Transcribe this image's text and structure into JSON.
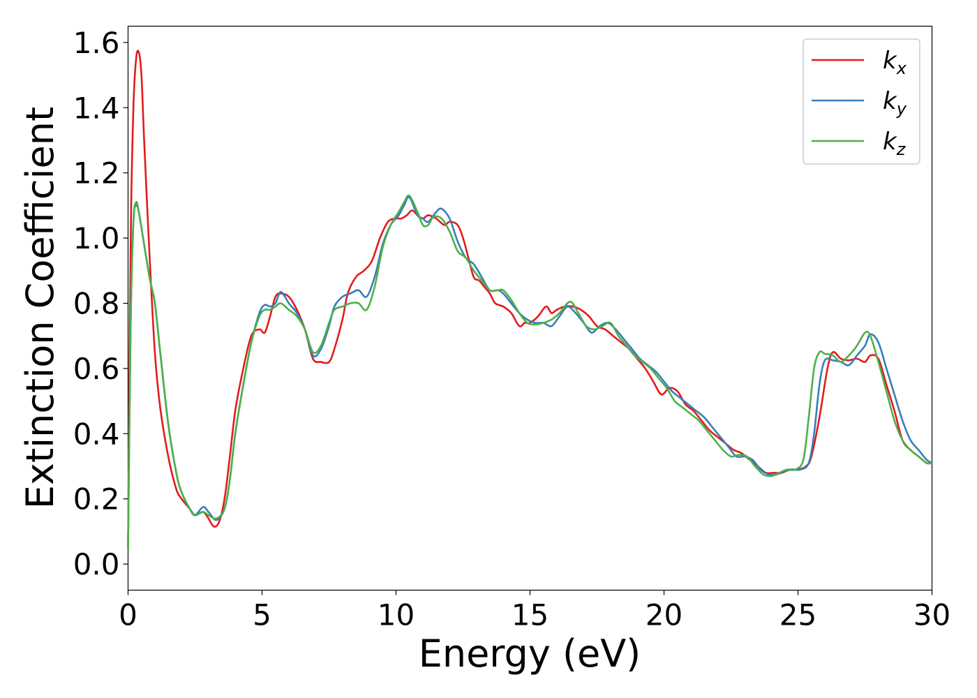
{
  "chart_data": {
    "type": "line",
    "xlabel": "Energy (eV)",
    "ylabel": "Extinction Coefficient",
    "xlim": [
      0,
      30
    ],
    "ylim": [
      -0.08,
      1.65
    ],
    "xticks": [
      0,
      5,
      10,
      15,
      20,
      25,
      30
    ],
    "xtick_labels": [
      "0",
      "5",
      "10",
      "15",
      "20",
      "25",
      "30"
    ],
    "yticks": [
      0.0,
      0.2,
      0.4,
      0.6,
      0.8,
      1.0,
      1.2,
      1.4,
      1.6
    ],
    "ytick_labels": [
      "0.0",
      "0.2",
      "0.4",
      "0.6",
      "0.8",
      "1.0",
      "1.2",
      "1.4",
      "1.6"
    ],
    "grid": false,
    "legend_position": "top-right",
    "series": [
      {
        "name": "k_x",
        "label_base": "k",
        "label_sub": "x",
        "color": "#e41a1c",
        "x": [
          0,
          0.1,
          0.2,
          0.3,
          0.4,
          0.5,
          0.6,
          0.8,
          1.0,
          1.2,
          1.5,
          1.8,
          2.0,
          2.3,
          2.5,
          2.8,
          3.0,
          3.2,
          3.4,
          3.6,
          3.8,
          4.0,
          4.3,
          4.6,
          4.9,
          5.1,
          5.3,
          5.5,
          5.7,
          6.0,
          6.3,
          6.6,
          6.9,
          7.2,
          7.5,
          7.7,
          8.0,
          8.2,
          8.5,
          8.8,
          9.1,
          9.4,
          9.7,
          10.0,
          10.2,
          10.4,
          10.6,
          10.8,
          11.0,
          11.2,
          11.5,
          11.8,
          12.0,
          12.3,
          12.5,
          12.7,
          12.9,
          13.1,
          13.3,
          13.5,
          13.7,
          14.0,
          14.3,
          14.6,
          14.8,
          15.0,
          15.3,
          15.6,
          15.8,
          16.0,
          16.3,
          16.6,
          16.9,
          17.2,
          17.5,
          17.8,
          18.1,
          18.4,
          18.7,
          19.0,
          19.3,
          19.6,
          19.9,
          20.2,
          20.5,
          20.8,
          21.1,
          21.4,
          21.7,
          22.0,
          22.3,
          22.6,
          22.9,
          23.2,
          23.5,
          23.8,
          24.1,
          24.4,
          24.7,
          25.0,
          25.3,
          25.5,
          25.8,
          26.1,
          26.3,
          26.6,
          26.9,
          27.2,
          27.5,
          27.7,
          28.0,
          28.3,
          28.6,
          28.9,
          29.2,
          29.5,
          29.8,
          30.0
        ],
        "values": [
          0.05,
          1.0,
          1.4,
          1.55,
          1.57,
          1.5,
          1.3,
          0.95,
          0.65,
          0.48,
          0.33,
          0.23,
          0.2,
          0.17,
          0.15,
          0.16,
          0.14,
          0.115,
          0.13,
          0.2,
          0.33,
          0.47,
          0.6,
          0.7,
          0.72,
          0.71,
          0.76,
          0.82,
          0.83,
          0.82,
          0.78,
          0.72,
          0.63,
          0.62,
          0.62,
          0.66,
          0.75,
          0.83,
          0.88,
          0.9,
          0.93,
          1.0,
          1.05,
          1.06,
          1.06,
          1.07,
          1.085,
          1.07,
          1.06,
          1.07,
          1.06,
          1.04,
          1.05,
          1.04,
          1.0,
          0.94,
          0.88,
          0.87,
          0.85,
          0.83,
          0.8,
          0.79,
          0.77,
          0.73,
          0.74,
          0.74,
          0.76,
          0.79,
          0.77,
          0.78,
          0.79,
          0.79,
          0.78,
          0.76,
          0.73,
          0.72,
          0.7,
          0.68,
          0.66,
          0.63,
          0.6,
          0.56,
          0.52,
          0.54,
          0.53,
          0.49,
          0.47,
          0.44,
          0.41,
          0.39,
          0.37,
          0.35,
          0.34,
          0.32,
          0.3,
          0.28,
          0.28,
          0.28,
          0.29,
          0.29,
          0.3,
          0.33,
          0.45,
          0.6,
          0.65,
          0.63,
          0.625,
          0.63,
          0.62,
          0.64,
          0.63,
          0.55,
          0.47,
          0.38,
          0.35,
          0.33,
          0.31,
          0.31
        ]
      },
      {
        "name": "k_y",
        "label_base": "k",
        "label_sub": "y",
        "color": "#377eb8",
        "x": [
          0,
          0.1,
          0.2,
          0.3,
          0.4,
          0.6,
          0.8,
          1.0,
          1.2,
          1.5,
          1.8,
          2.0,
          2.3,
          2.5,
          2.8,
          3.0,
          3.3,
          3.6,
          3.8,
          4.0,
          4.3,
          4.6,
          4.9,
          5.1,
          5.3,
          5.5,
          5.7,
          6.0,
          6.3,
          6.6,
          6.9,
          7.2,
          7.5,
          7.7,
          8.0,
          8.3,
          8.6,
          8.9,
          9.2,
          9.5,
          9.8,
          10.1,
          10.3,
          10.5,
          10.8,
          11.0,
          11.2,
          11.5,
          11.7,
          12.0,
          12.3,
          12.6,
          12.9,
          13.2,
          13.5,
          13.8,
          14.0,
          14.3,
          14.6,
          14.9,
          15.2,
          15.5,
          15.8,
          16.1,
          16.4,
          16.7,
          17.0,
          17.3,
          17.6,
          17.9,
          18.2,
          18.5,
          18.8,
          19.1,
          19.4,
          19.7,
          20.0,
          20.3,
          20.6,
          20.9,
          21.2,
          21.5,
          21.8,
          22.1,
          22.4,
          22.7,
          23.0,
          23.3,
          23.6,
          23.9,
          24.2,
          24.5,
          24.8,
          25.1,
          25.4,
          25.6,
          25.8,
          26.0,
          26.3,
          26.6,
          26.9,
          27.2,
          27.5,
          27.7,
          28.0,
          28.3,
          28.6,
          28.9,
          29.2,
          29.5,
          29.8,
          30.0
        ],
        "values": [
          0.05,
          0.75,
          1.05,
          1.1,
          1.08,
          0.98,
          0.88,
          0.8,
          0.65,
          0.43,
          0.28,
          0.22,
          0.17,
          0.15,
          0.175,
          0.16,
          0.135,
          0.17,
          0.26,
          0.4,
          0.55,
          0.68,
          0.77,
          0.795,
          0.79,
          0.8,
          0.835,
          0.8,
          0.77,
          0.72,
          0.64,
          0.66,
          0.73,
          0.79,
          0.82,
          0.83,
          0.84,
          0.82,
          0.88,
          0.98,
          1.04,
          1.07,
          1.1,
          1.125,
          1.07,
          1.06,
          1.05,
          1.08,
          1.09,
          1.06,
          0.99,
          0.94,
          0.92,
          0.88,
          0.84,
          0.84,
          0.83,
          0.8,
          0.77,
          0.75,
          0.74,
          0.74,
          0.73,
          0.76,
          0.79,
          0.77,
          0.74,
          0.71,
          0.73,
          0.74,
          0.72,
          0.69,
          0.66,
          0.63,
          0.61,
          0.59,
          0.56,
          0.53,
          0.51,
          0.49,
          0.47,
          0.45,
          0.42,
          0.39,
          0.36,
          0.33,
          0.33,
          0.32,
          0.29,
          0.275,
          0.275,
          0.285,
          0.29,
          0.29,
          0.31,
          0.4,
          0.55,
          0.625,
          0.625,
          0.62,
          0.61,
          0.64,
          0.67,
          0.705,
          0.68,
          0.6,
          0.52,
          0.44,
          0.38,
          0.35,
          0.32,
          0.31
        ]
      },
      {
        "name": "k_z",
        "label_base": "k",
        "label_sub": "z",
        "color": "#4daf4a",
        "x": [
          0,
          0.1,
          0.2,
          0.3,
          0.4,
          0.6,
          0.8,
          1.0,
          1.2,
          1.5,
          1.8,
          2.0,
          2.3,
          2.5,
          2.8,
          3.0,
          3.3,
          3.6,
          3.8,
          4.0,
          4.3,
          4.6,
          4.9,
          5.1,
          5.3,
          5.5,
          5.7,
          6.0,
          6.3,
          6.6,
          6.9,
          7.2,
          7.5,
          7.7,
          8.0,
          8.3,
          8.6,
          8.9,
          9.2,
          9.5,
          9.8,
          10.1,
          10.3,
          10.5,
          10.8,
          11.0,
          11.2,
          11.4,
          11.7,
          12.0,
          12.3,
          12.6,
          12.9,
          13.2,
          13.5,
          13.8,
          14.0,
          14.3,
          14.6,
          14.9,
          15.2,
          15.5,
          15.8,
          16.1,
          16.5,
          16.8,
          17.1,
          17.4,
          17.7,
          18.0,
          18.3,
          18.6,
          18.9,
          19.2,
          19.5,
          19.8,
          20.1,
          20.4,
          20.7,
          21.0,
          21.3,
          21.6,
          21.9,
          22.2,
          22.5,
          22.8,
          23.1,
          23.4,
          23.7,
          24.0,
          24.3,
          24.6,
          24.9,
          25.2,
          25.4,
          25.6,
          25.8,
          26.0,
          26.3,
          26.6,
          26.9,
          27.2,
          27.5,
          27.7,
          28.0,
          28.3,
          28.6,
          28.9,
          29.2,
          29.5,
          29.8,
          30.0
        ],
        "values": [
          0.05,
          0.75,
          1.05,
          1.11,
          1.08,
          0.98,
          0.88,
          0.8,
          0.65,
          0.43,
          0.28,
          0.22,
          0.17,
          0.15,
          0.16,
          0.15,
          0.14,
          0.17,
          0.26,
          0.4,
          0.55,
          0.68,
          0.76,
          0.78,
          0.78,
          0.79,
          0.8,
          0.78,
          0.76,
          0.72,
          0.65,
          0.67,
          0.74,
          0.78,
          0.79,
          0.8,
          0.8,
          0.78,
          0.85,
          0.97,
          1.04,
          1.08,
          1.11,
          1.13,
          1.08,
          1.04,
          1.04,
          1.065,
          1.06,
          1.02,
          0.96,
          0.94,
          0.9,
          0.87,
          0.84,
          0.84,
          0.84,
          0.81,
          0.77,
          0.74,
          0.735,
          0.74,
          0.75,
          0.77,
          0.805,
          0.77,
          0.73,
          0.72,
          0.73,
          0.74,
          0.7,
          0.67,
          0.64,
          0.62,
          0.6,
          0.57,
          0.54,
          0.5,
          0.48,
          0.46,
          0.44,
          0.41,
          0.38,
          0.35,
          0.33,
          0.335,
          0.33,
          0.3,
          0.275,
          0.27,
          0.28,
          0.29,
          0.29,
          0.32,
          0.45,
          0.6,
          0.65,
          0.645,
          0.64,
          0.62,
          0.64,
          0.67,
          0.71,
          0.7,
          0.62,
          0.53,
          0.44,
          0.38,
          0.35,
          0.33,
          0.31,
          0.31
        ]
      }
    ]
  }
}
